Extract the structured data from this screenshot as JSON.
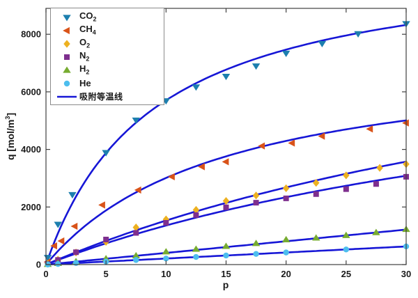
{
  "figure": {
    "background": "#ffffff",
    "axis_color": "#3f3f3f",
    "text_color": "#1a1a1a"
  },
  "chart_data": {
    "type": "scatter",
    "title": "",
    "xlabel": "p",
    "ylabel": "q [mol/m^3]",
    "ylabel_parts": {
      "pre": "q [mol/m",
      "sup": "3",
      "post": "]"
    },
    "xlim": [
      0,
      30
    ],
    "ylim": [
      0,
      8900
    ],
    "xtick_values": [
      0,
      5,
      10,
      15,
      20,
      25,
      30
    ],
    "xtick_labels": [
      "0",
      "5",
      "10",
      "15",
      "20",
      "25",
      "30"
    ],
    "ytick_values": [
      0,
      2000,
      4000,
      6000,
      8000
    ],
    "ytick_labels": [
      "0",
      "2000",
      "4000",
      "6000",
      "8000"
    ],
    "grid": false,
    "legend_position": "top-left",
    "isotherm_line_color": "#1616d6",
    "isotherm_line_label": "吸附等温线",
    "series": [
      {
        "name": "CO2",
        "label_base": "CO",
        "label_sub": "2",
        "marker": "triangle-down",
        "color": "#1d7fae",
        "curve_model": {
          "type": "langmuir",
          "qmax": 10800,
          "b": 0.112
        },
        "p": [
          0.15,
          1,
          2.2,
          5,
          7.5,
          10,
          12.5,
          15,
          17.5,
          20,
          23,
          26,
          30
        ],
        "q": [
          250,
          1400,
          2430,
          3890,
          5020,
          5690,
          6170,
          6540,
          6900,
          7340,
          7680,
          8020,
          8370
        ]
      },
      {
        "name": "CH4",
        "label_base": "CH",
        "label_sub": "4",
        "marker": "triangle-left",
        "color": "#d95319",
        "curve_model": {
          "type": "langmuir",
          "qmax": 7500,
          "b": 0.067
        },
        "p": [
          0.15,
          0.7,
          1.3,
          2.4,
          4.7,
          7.7,
          10.5,
          13,
          15,
          18,
          20.5,
          23,
          27,
          30
        ],
        "q": [
          90,
          650,
          820,
          1330,
          2070,
          2590,
          3050,
          3400,
          3570,
          4120,
          4220,
          4460,
          4710,
          4920
        ]
      },
      {
        "name": "O2",
        "label_base": "O",
        "label_sub": "2",
        "marker": "diamond",
        "color": "#edb120",
        "curve_model": {
          "type": "langmuir",
          "qmax": 10800,
          "b": 0.0165
        },
        "p": [
          0.15,
          1,
          2.5,
          5,
          7.5,
          10,
          12.5,
          15,
          17.5,
          20,
          22.5,
          25,
          27.8,
          30
        ],
        "q": [
          30,
          170,
          420,
          790,
          1290,
          1570,
          1900,
          2210,
          2400,
          2650,
          2840,
          3100,
          3360,
          3490
        ]
      },
      {
        "name": "N2",
        "label_base": "N",
        "label_sub": "2",
        "marker": "square",
        "color": "#7e2f8e",
        "curve_model": {
          "type": "langmuir",
          "qmax": 8500,
          "b": 0.019
        },
        "p": [
          0.15,
          1,
          2.5,
          5,
          7.5,
          10,
          12.5,
          15,
          17.5,
          20,
          22.5,
          25,
          27.5,
          30
        ],
        "q": [
          25,
          160,
          430,
          870,
          1100,
          1450,
          1720,
          1990,
          2150,
          2300,
          2450,
          2620,
          2800,
          3050
        ]
      },
      {
        "name": "H2",
        "label_base": "H",
        "label_sub": "2",
        "marker": "triangle-up",
        "color": "#77ac30",
        "curve_model": {
          "type": "linear",
          "slope": 40.5
        },
        "p": [
          0.15,
          1,
          2.5,
          5,
          7.5,
          10,
          12.5,
          15,
          17.5,
          20,
          22.5,
          25,
          27.5,
          30
        ],
        "q": [
          6,
          40,
          100,
          200,
          305,
          440,
          530,
          630,
          730,
          860,
          920,
          1010,
          1110,
          1220
        ]
      },
      {
        "name": "He",
        "label_base": "He",
        "label_sub": "",
        "marker": "circle",
        "color": "#4dbeee",
        "curve_model": {
          "type": "linear",
          "slope": 21
        },
        "p": [
          0.15,
          1,
          2.5,
          5,
          7.5,
          10,
          12.5,
          15,
          17.5,
          20,
          25,
          30
        ],
        "q": [
          3,
          20,
          55,
          105,
          160,
          210,
          265,
          315,
          370,
          420,
          525,
          630
        ]
      }
    ]
  }
}
